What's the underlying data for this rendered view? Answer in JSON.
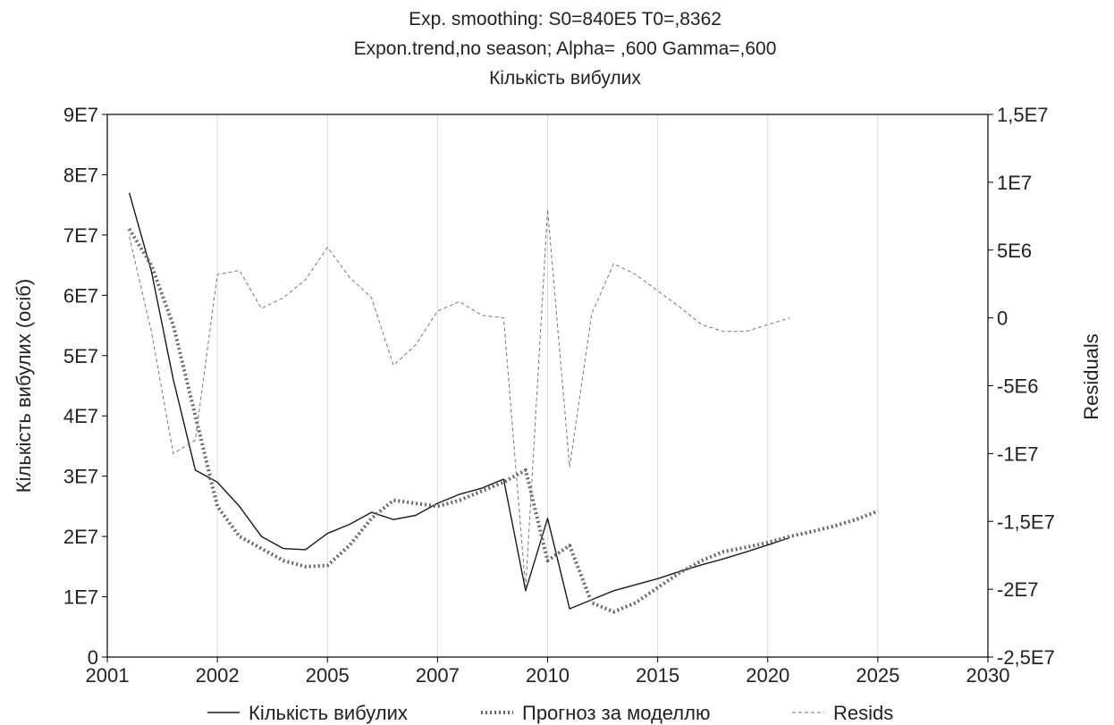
{
  "chart_data": {
    "type": "line",
    "title_lines": [
      "Exp. smoothing:  S0=840E5 T0=,8362",
      "Expon.trend,no season; Alpha=  ,600 Gamma=,600",
      "Кількість вибулих"
    ],
    "ylabel": "Кількість вибулих (осіб)",
    "y2label": "Residuals",
    "xlim": [
      0,
      40
    ],
    "ylim": [
      0,
      90000000
    ],
    "y2lim": [
      -25000000,
      15000000
    ],
    "x_ticks": [
      {
        "x": 0,
        "label": "2001"
      },
      {
        "x": 5,
        "label": "2002"
      },
      {
        "x": 10,
        "label": "2005"
      },
      {
        "x": 15,
        "label": "2007"
      },
      {
        "x": 20,
        "label": "2010"
      },
      {
        "x": 25,
        "label": "2015"
      },
      {
        "x": 30,
        "label": "2020"
      },
      {
        "x": 35,
        "label": "2025"
      },
      {
        "x": 40,
        "label": "2030"
      }
    ],
    "y_ticks": [
      {
        "v": 0,
        "label": "0"
      },
      {
        "v": 10000000,
        "label": "1E7"
      },
      {
        "v": 20000000,
        "label": "2E7"
      },
      {
        "v": 30000000,
        "label": "3E7"
      },
      {
        "v": 40000000,
        "label": "4E7"
      },
      {
        "v": 50000000,
        "label": "5E7"
      },
      {
        "v": 60000000,
        "label": "6E7"
      },
      {
        "v": 70000000,
        "label": "7E7"
      },
      {
        "v": 80000000,
        "label": "8E7"
      },
      {
        "v": 90000000,
        "label": "9E7"
      }
    ],
    "y2_ticks": [
      {
        "v": -25000000,
        "label": "-2,5E7"
      },
      {
        "v": -20000000,
        "label": "-2E7"
      },
      {
        "v": -15000000,
        "label": "-1,5E7"
      },
      {
        "v": -10000000,
        "label": "-1E7"
      },
      {
        "v": -5000000,
        "label": "-5E6"
      },
      {
        "v": 0,
        "label": "0"
      },
      {
        "v": 5000000,
        "label": "5E6"
      },
      {
        "v": 10000000,
        "label": "1E7"
      },
      {
        "v": 15000000,
        "label": "1,5E7"
      }
    ],
    "grid": true,
    "legend_position": "bottom",
    "series": [
      {
        "name": "Кількість вибулих",
        "axis": "left",
        "style": "solid",
        "color": "#1a1a1a",
        "points": [
          [
            1,
            77000000
          ],
          [
            2,
            64000000
          ],
          [
            3,
            46000000
          ],
          [
            4,
            31000000
          ],
          [
            5,
            29000000
          ],
          [
            6,
            25000000
          ],
          [
            7,
            20000000
          ],
          [
            8,
            18000000
          ],
          [
            9,
            17800000
          ],
          [
            10,
            20500000
          ],
          [
            11,
            22000000
          ],
          [
            12,
            24000000
          ],
          [
            13,
            22800000
          ],
          [
            14,
            23500000
          ],
          [
            15,
            25500000
          ],
          [
            16,
            27000000
          ],
          [
            17,
            28000000
          ],
          [
            18,
            29500000
          ],
          [
            19,
            11000000
          ],
          [
            20,
            23000000
          ],
          [
            21,
            8000000
          ],
          [
            22,
            9500000
          ],
          [
            23,
            11000000
          ],
          [
            24,
            12000000
          ],
          [
            25,
            13000000
          ],
          [
            26,
            14200000
          ],
          [
            27,
            15300000
          ],
          [
            28,
            16300000
          ],
          [
            29,
            17400000
          ],
          [
            30,
            18600000
          ],
          [
            31,
            19800000
          ]
        ]
      },
      {
        "name": "Прогноз за моделлю",
        "axis": "left",
        "style": "dotted",
        "color": "#666666",
        "points": [
          [
            1,
            71000000
          ],
          [
            2,
            65000000
          ],
          [
            3,
            55000000
          ],
          [
            4,
            40000000
          ],
          [
            5,
            25000000
          ],
          [
            6,
            20000000
          ],
          [
            7,
            18000000
          ],
          [
            8,
            16000000
          ],
          [
            9,
            15000000
          ],
          [
            10,
            15200000
          ],
          [
            11,
            18500000
          ],
          [
            12,
            23000000
          ],
          [
            13,
            26000000
          ],
          [
            14,
            25500000
          ],
          [
            15,
            25000000
          ],
          [
            16,
            26000000
          ],
          [
            17,
            27500000
          ],
          [
            18,
            29000000
          ],
          [
            19,
            31000000
          ],
          [
            20,
            16000000
          ],
          [
            21,
            18500000
          ],
          [
            22,
            9000000
          ],
          [
            23,
            7500000
          ],
          [
            24,
            9000000
          ],
          [
            25,
            11500000
          ],
          [
            26,
            14000000
          ],
          [
            27,
            16000000
          ],
          [
            28,
            17500000
          ],
          [
            29,
            18200000
          ],
          [
            30,
            19000000
          ],
          [
            31,
            20000000
          ],
          [
            32,
            20800000
          ],
          [
            33,
            21700000
          ],
          [
            34,
            22800000
          ],
          [
            35,
            24200000
          ]
        ]
      },
      {
        "name": "Resids",
        "axis": "right",
        "style": "dashed",
        "color": "#777777",
        "points": [
          [
            1,
            6000000
          ],
          [
            2,
            -1000000
          ],
          [
            3,
            -10000000
          ],
          [
            4,
            -9000000
          ],
          [
            5,
            3200000
          ],
          [
            6,
            3500000
          ],
          [
            7,
            700000
          ],
          [
            8,
            1500000
          ],
          [
            9,
            2800000
          ],
          [
            10,
            5200000
          ],
          [
            11,
            3000000
          ],
          [
            12,
            1500000
          ],
          [
            13,
            -3500000
          ],
          [
            14,
            -2000000
          ],
          [
            15,
            500000
          ],
          [
            16,
            1200000
          ],
          [
            17,
            200000
          ],
          [
            18,
            0
          ],
          [
            19,
            -20000000
          ],
          [
            20,
            8000000
          ],
          [
            21,
            -11000000
          ],
          [
            22,
            300000
          ],
          [
            23,
            4000000
          ],
          [
            24,
            3200000
          ],
          [
            25,
            2000000
          ],
          [
            26,
            800000
          ],
          [
            27,
            -500000
          ],
          [
            28,
            -1000000
          ],
          [
            29,
            -1000000
          ],
          [
            30,
            -500000
          ],
          [
            31,
            0
          ]
        ]
      }
    ]
  }
}
